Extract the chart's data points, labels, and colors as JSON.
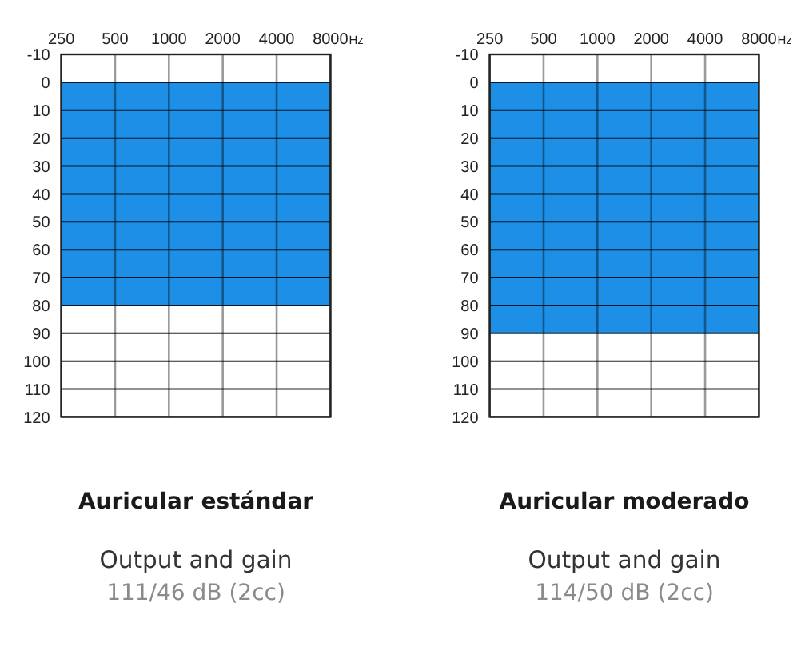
{
  "chart_data": [
    {
      "type": "area",
      "title": "Auricular estándar",
      "subtitle": "Output and gain",
      "annotations": [
        "111/46 dB (2cc)"
      ],
      "xlabel": "Hz",
      "categories": [
        "250",
        "500",
        "1000",
        "2000",
        "4000",
        "8000"
      ],
      "values": [
        80,
        80,
        80,
        80,
        80,
        80
      ],
      "color": "#1e8fe6",
      "ylim": [
        120,
        -10
      ],
      "yticks": [
        -10,
        0,
        10,
        20,
        30,
        40,
        50,
        60,
        70,
        80,
        90,
        100,
        110,
        120
      ],
      "grid": true
    },
    {
      "type": "area",
      "title": "Auricular moderado",
      "subtitle": "Output and gain",
      "annotations": [
        "114/50 dB (2cc)"
      ],
      "xlabel": "Hz",
      "categories": [
        "250",
        "500",
        "1000",
        "2000",
        "4000",
        "8000"
      ],
      "values": [
        90,
        90,
        90,
        90,
        90,
        90
      ],
      "color": "#1e8fe6",
      "ylim": [
        120,
        -10
      ],
      "yticks": [
        -10,
        0,
        10,
        20,
        30,
        40,
        50,
        60,
        70,
        80,
        90,
        100,
        110,
        120
      ],
      "grid": true
    }
  ]
}
